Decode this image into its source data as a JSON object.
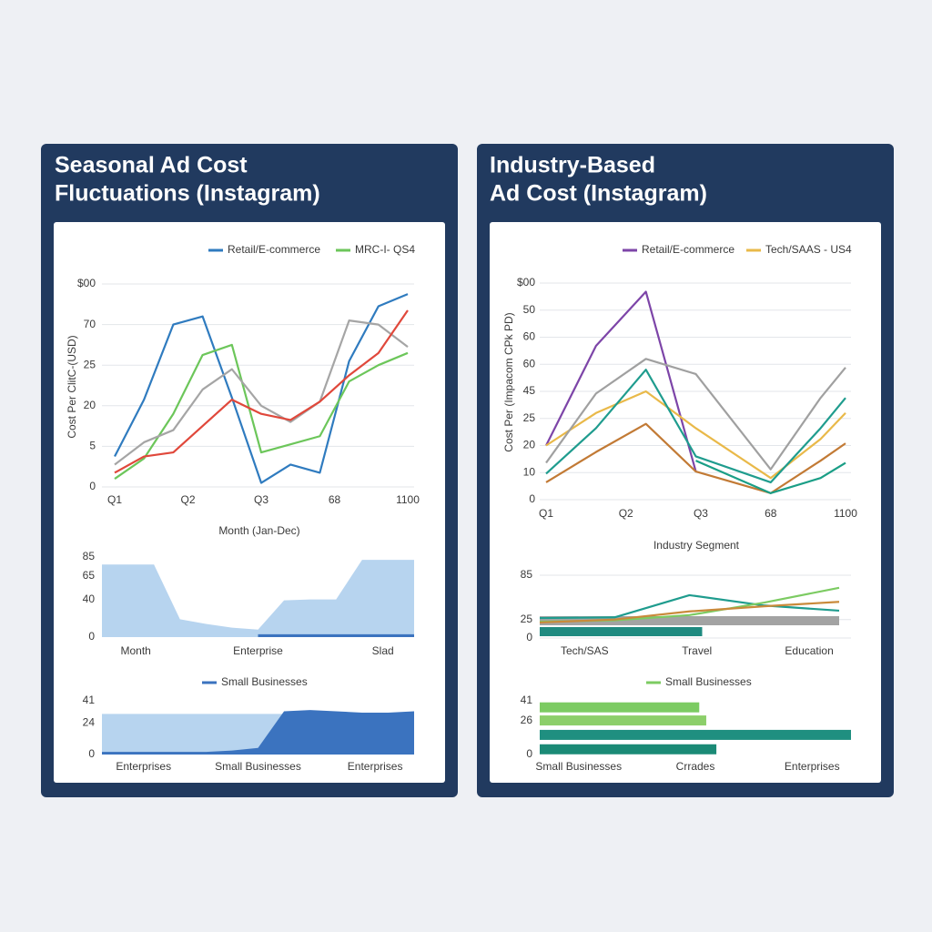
{
  "panels": [
    {
      "title": [
        "Seasonal Ad Cost",
        "Fluctuations (Instagram)"
      ]
    },
    {
      "title": [
        "Industry-Based",
        "Ad Cost (Instagram)"
      ]
    }
  ],
  "chart_data": [
    {
      "type": "line",
      "xlabel": "Month (Jan-Dec)",
      "ylabel": "Cost Per ClitC-(USD)",
      "x": [
        0,
        1,
        2,
        3,
        4,
        5,
        6,
        7,
        8,
        9,
        10
      ],
      "xlim": [
        0,
        10
      ],
      "xticks": [
        {
          "value": 0,
          "label": "Q1"
        },
        {
          "value": 2.5,
          "label": "Q2"
        },
        {
          "value": 5,
          "label": "Q3"
        },
        {
          "value": 7.5,
          "label": "68"
        },
        {
          "value": 10,
          "label": "1100"
        }
      ],
      "ylim": [
        0,
        100
      ],
      "yticks": [
        0,
        {
          "value": 20,
          "label": "5"
        },
        {
          "value": 40,
          "label": "20"
        },
        {
          "value": 60,
          "label": "25"
        },
        {
          "value": 80,
          "label": "70"
        },
        {
          "value": 100,
          "label": "$00"
        }
      ],
      "grid": true,
      "series": [
        {
          "name": "Retail/E-commerce",
          "color": "#2f7bbf",
          "values": [
            15,
            43,
            80,
            84,
            44,
            2,
            11,
            7,
            62,
            89,
            95
          ]
        },
        {
          "name": "MRC-I- QS4",
          "color": "#6cc65a",
          "values": [
            4,
            14,
            36,
            65,
            70,
            17,
            21,
            25,
            52,
            60,
            66
          ]
        },
        {
          "color": "#a5a5a5",
          "values": [
            11,
            22,
            28,
            48,
            58,
            40,
            32,
            42,
            82,
            80,
            69
          ]
        },
        {
          "color": "#e0483b",
          "values": [
            7,
            15,
            17,
            30,
            43,
            36,
            33,
            42,
            55,
            66,
            87
          ]
        }
      ]
    },
    {
      "type": "area",
      "x": [
        0,
        1,
        2,
        3,
        4,
        5,
        6,
        7,
        8,
        9,
        10,
        11,
        12
      ],
      "xlim": [
        0,
        12
      ],
      "xticks": [
        {
          "value": 1.3,
          "label": "Month"
        },
        {
          "value": 6,
          "label": "Enterprise"
        },
        {
          "value": 10.8,
          "label": "Slad"
        }
      ],
      "ylim": [
        0,
        85
      ],
      "yticks": [
        0,
        40,
        65,
        85
      ],
      "grid": false,
      "series": [
        {
          "color": "#b7d4ef",
          "values": [
            77,
            77,
            77,
            19,
            14,
            10,
            8,
            39,
            40,
            40,
            82,
            82,
            82
          ]
        },
        {
          "color": "#3b73bf",
          "values": [
            null,
            null,
            null,
            null,
            null,
            null,
            3,
            3,
            3,
            3,
            3,
            3,
            3
          ]
        }
      ]
    },
    {
      "type": "area",
      "x": [
        0,
        1,
        2,
        3,
        4,
        5,
        6,
        7,
        8,
        9,
        10,
        11,
        12
      ],
      "xlim": [
        0,
        12
      ],
      "xticks": [
        {
          "value": 1.6,
          "label": "Enterprises"
        },
        {
          "value": 6,
          "label": "Small Businesses"
        },
        {
          "value": 10.5,
          "label": "Enterprises"
        }
      ],
      "ylim": [
        0,
        41
      ],
      "yticks": [
        0,
        24,
        41
      ],
      "grid": false,
      "series": [
        {
          "color": "#b7d4ef",
          "values": [
            31,
            31,
            31,
            31,
            31,
            31,
            31,
            31,
            31,
            31,
            31,
            31,
            31
          ]
        },
        {
          "name": "Small Businesses",
          "color": "#3b73bf",
          "values": [
            2,
            2,
            2,
            2,
            2,
            3,
            5,
            33,
            34,
            33,
            32,
            32,
            33
          ]
        }
      ]
    },
    {
      "type": "line",
      "xlabel": "Industry Segment",
      "ylabel": "Cost Per (Impacom CPk PD)",
      "x": [
        0,
        2,
        4,
        6,
        9,
        11,
        12
      ],
      "xlim": [
        0,
        12
      ],
      "xticks": [
        {
          "value": 0,
          "label": "Q1"
        },
        {
          "value": 3.2,
          "label": "Q2"
        },
        {
          "value": 6.2,
          "label": "Q3"
        },
        {
          "value": 9,
          "label": "68"
        },
        {
          "value": 12,
          "label": "1100"
        }
      ],
      "ylim": [
        0,
        100
      ],
      "yticks": [
        0,
        {
          "value": 12.5,
          "label": "10"
        },
        {
          "value": 25,
          "label": "20"
        },
        {
          "value": 37.5,
          "label": "25"
        },
        {
          "value": 50,
          "label": "45"
        },
        {
          "value": 62.5,
          "label": "60"
        },
        {
          "value": 75,
          "label": "60"
        },
        {
          "value": 87.5,
          "label": "50"
        },
        {
          "value": 100,
          "label": "$00"
        }
      ],
      "grid": true,
      "series": [
        {
          "name": "Retail/E-commerce",
          "color": "#7d45a8",
          "values": [
            25,
            71,
            96,
            13,
            null,
            null,
            null
          ]
        },
        {
          "name": "Tech/SAAS - US4",
          "color": "#e9b949",
          "values": [
            25,
            40,
            50,
            33,
            10,
            28,
            40
          ]
        },
        {
          "color": "#a0a0a0",
          "values": [
            17,
            49,
            65,
            58,
            14,
            47,
            61
          ]
        },
        {
          "color": "#1f9c8e",
          "values": [
            12,
            33,
            60,
            20,
            8,
            33,
            47
          ]
        },
        {
          "color": "#c27a35",
          "values": [
            8,
            22,
            35,
            13,
            3,
            18,
            26
          ]
        },
        {
          "color": "#1a9e86",
          "values": [
            null,
            null,
            null,
            18,
            3,
            10,
            17
          ]
        }
      ]
    },
    {
      "type": "combo",
      "x": [
        0,
        1,
        2,
        3,
        4
      ],
      "xlim": [
        0,
        4
      ],
      "xticks": [
        {
          "value": 0.6,
          "label": "Tech/SAS"
        },
        {
          "value": 2.1,
          "label": "Travel"
        },
        {
          "value": 3.6,
          "label": "Education"
        }
      ],
      "ylim": [
        0,
        85
      ],
      "yticks": [
        0,
        25,
        85
      ],
      "grid": true,
      "bars": [
        {
          "color": "#a3a3a3",
          "value": 4
        },
        {
          "color": "#1f8a80",
          "value": 2.17
        }
      ],
      "series": [
        {
          "color": "#1f9c8e",
          "values": [
            27,
            28,
            58,
            44,
            37
          ]
        },
        {
          "color": "#7ccb62",
          "values": [
            22,
            24,
            31,
            48,
            68
          ]
        },
        {
          "color": "#c98a3b",
          "values": [
            21,
            25,
            36,
            43,
            49
          ]
        }
      ]
    },
    {
      "type": "hbar",
      "xlim": [
        0,
        4
      ],
      "xticks": [
        {
          "value": 0.5,
          "label": "Small Businesses"
        },
        {
          "value": 2,
          "label": "Crrades"
        },
        {
          "value": 3.5,
          "label": "Enterprises"
        }
      ],
      "ylim": [
        0,
        41
      ],
      "yticks": [
        0,
        26,
        41
      ],
      "grid": false,
      "bars": [
        {
          "name": "Small Businesses",
          "color": "#7ccb62",
          "y": 36,
          "value": 2.05
        },
        {
          "color": "#8ccf6a",
          "y": 26,
          "value": 2.14
        },
        {
          "color": "#1f8f80",
          "y": 15,
          "value": 4
        },
        {
          "color": "#1b8a76",
          "y": 4,
          "value": 2.27
        }
      ]
    }
  ]
}
